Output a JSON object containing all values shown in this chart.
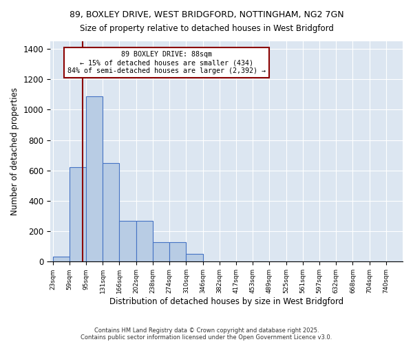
{
  "title_line1": "89, BOXLEY DRIVE, WEST BRIDGFORD, NOTTINGHAM, NG2 7GN",
  "title_line2": "Size of property relative to detached houses in West Bridgford",
  "xlabel": "Distribution of detached houses by size in West Bridgford",
  "ylabel": "Number of detached properties",
  "bin_labels": [
    "23sqm",
    "59sqm",
    "95sqm",
    "131sqm",
    "166sqm",
    "202sqm",
    "238sqm",
    "274sqm",
    "310sqm",
    "346sqm",
    "382sqm",
    "417sqm",
    "453sqm",
    "489sqm",
    "525sqm",
    "561sqm",
    "597sqm",
    "632sqm",
    "668sqm",
    "704sqm",
    "740sqm"
  ],
  "bar_heights": [
    35,
    620,
    1090,
    650,
    270,
    270,
    130,
    130,
    50,
    0,
    0,
    0,
    0,
    0,
    0,
    0,
    0,
    0,
    0,
    0,
    0
  ],
  "bar_color": "#b8cce4",
  "bar_edge_color": "#4472c4",
  "bg_color": "#dce6f1",
  "vline_pos": 1.8,
  "vline_color": "#8b0000",
  "annotation_text": "89 BOXLEY DRIVE: 88sqm\n← 15% of detached houses are smaller (434)\n84% of semi-detached houses are larger (2,392) →",
  "annotation_box_color": "#ffffff",
  "annotation_box_edge": "#8b0000",
  "ylim": [
    0,
    1450
  ],
  "yticks": [
    0,
    200,
    400,
    600,
    800,
    1000,
    1200,
    1400
  ],
  "footer_line1": "Contains HM Land Registry data © Crown copyright and database right 2025.",
  "footer_line2": "Contains public sector information licensed under the Open Government Licence v3.0."
}
